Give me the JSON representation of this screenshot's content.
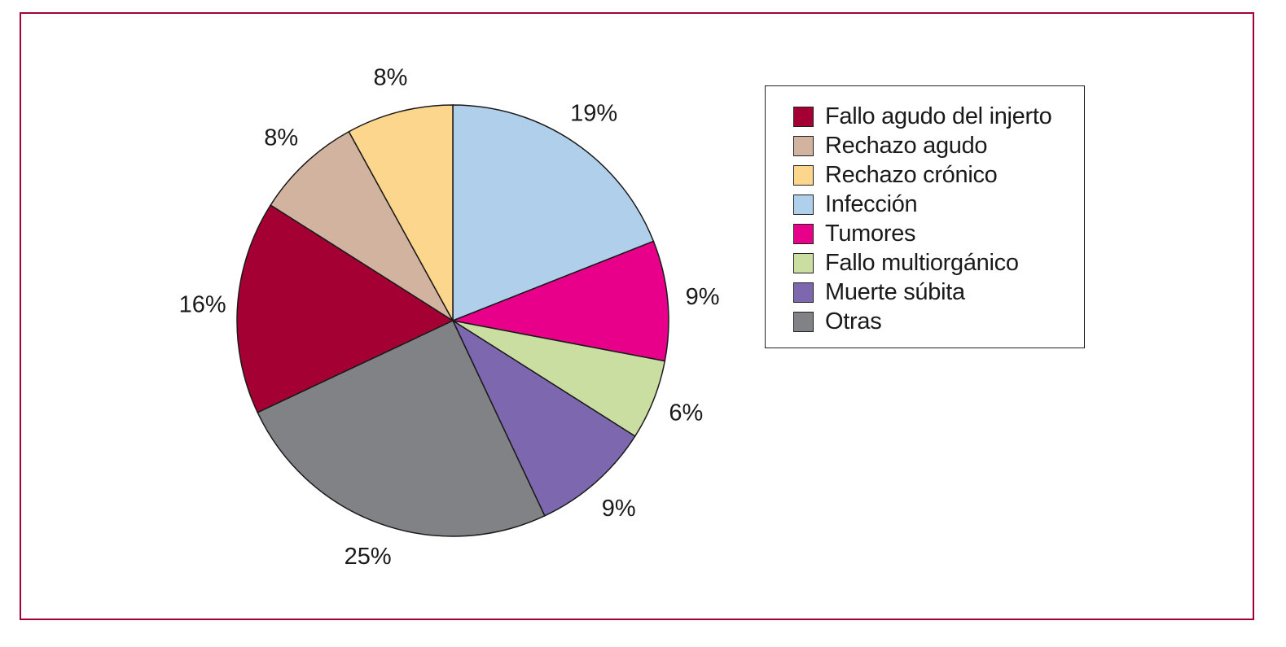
{
  "chart_data": {
    "type": "pie",
    "categories": [
      "Fallo agudo del injerto",
      "Rechazo agudo",
      "Rechazo crónico",
      "Infección",
      "Tumores",
      "Fallo multiorgánico",
      "Muerte súbita",
      "Otras"
    ],
    "values": [
      16,
      8,
      8,
      19,
      9,
      6,
      9,
      25
    ],
    "value_labels": [
      "16%",
      "8%",
      "8%",
      "19%",
      "9%",
      "6%",
      "9%",
      "25%"
    ],
    "colors": [
      "#a50034",
      "#d2b3a0",
      "#fcd68c",
      "#b0cfeb",
      "#e8008a",
      "#c9dea0",
      "#7d68b0",
      "#808285"
    ],
    "legend_position": "right",
    "title": "",
    "xlabel": "",
    "ylabel": ""
  },
  "frame": {
    "border_color": "#a3003a"
  }
}
